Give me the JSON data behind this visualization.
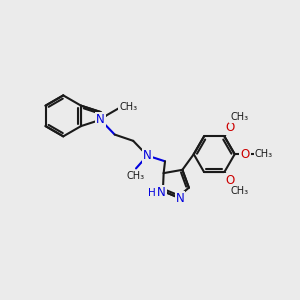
{
  "bg_color": "#ebebeb",
  "bond_color": "#1a1a1a",
  "n_color": "#0000dd",
  "o_color": "#cc0000",
  "bond_width": 1.5,
  "font_size": 8.5,
  "fig_w": 3.0,
  "fig_h": 3.0,
  "dpi": 100,
  "xlim": [
    0.0,
    10.5
  ],
  "ylim": [
    2.5,
    9.5
  ]
}
